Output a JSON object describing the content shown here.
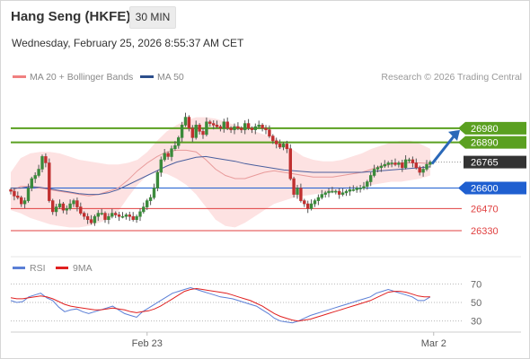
{
  "header": {
    "title": "Hang Seng (HKFE)",
    "timeframe": "30 MIN",
    "datetime": "Wednesday, February 25, 2026 8:55:37 AM CET",
    "copyright": "Research © 2026 Trading Central"
  },
  "legend": {
    "price": [
      {
        "label": "MA 20 + Bollinger Bands",
        "color": "#f08080"
      },
      {
        "label": "MA 50",
        "color": "#2c4f8c"
      }
    ],
    "rsi": [
      {
        "label": "RSI",
        "color": "#5b7fd6"
      },
      {
        "label": "9MA",
        "color": "#e02020"
      }
    ]
  },
  "levels": [
    {
      "label": "26980",
      "value": 26980,
      "kind": "resistance",
      "color": "#5aa020"
    },
    {
      "label": "26890",
      "value": 26890,
      "kind": "resistance",
      "color": "#5aa020"
    },
    {
      "label": "26765",
      "value": 26765,
      "kind": "last",
      "color": "#333333"
    },
    {
      "label": "26600",
      "value": 26600,
      "kind": "pivot",
      "color": "#1f5fd0"
    },
    {
      "label": "26470",
      "value": 26470,
      "kind": "support",
      "color": "#e04040"
    },
    {
      "label": "26330",
      "value": 26330,
      "kind": "support",
      "color": "#e04040"
    }
  ],
  "rsi_levels": [
    {
      "label": "70",
      "value": 70
    },
    {
      "label": "50",
      "value": 50
    },
    {
      "label": "30",
      "value": 30
    }
  ],
  "x_labels": [
    {
      "label": "Feb 23",
      "bar": 39
    },
    {
      "label": "Mar 2",
      "bar": 121
    }
  ],
  "colors": {
    "up": "#3a8a3a",
    "down": "#c03030",
    "band": "#fde2e2",
    "arrow": "#2a68b8"
  },
  "chart_data": [
    {
      "type": "candlestick",
      "title": "Hang Seng (HKFE)",
      "timeframe": "30 MIN",
      "ylim": [
        26250,
        27150
      ],
      "x_range": [
        0,
        128
      ],
      "series": [
        {
          "name": "MA 20 + Bollinger Bands",
          "type": "line"
        },
        {
          "name": "MA 50",
          "type": "line"
        }
      ],
      "close": [
        26580,
        26550,
        26540,
        26500,
        26520,
        26600,
        26660,
        26680,
        26720,
        26800,
        26760,
        26520,
        26450,
        26480,
        26500,
        26460,
        26470,
        26500,
        26520,
        26480,
        26440,
        26420,
        26400,
        26380,
        26420,
        26440,
        26440,
        26400,
        26420,
        26440,
        26430,
        26420,
        26420,
        26430,
        26420,
        26400,
        26420,
        26450,
        26480,
        26520,
        26540,
        26600,
        26700,
        26780,
        26820,
        26800,
        26850,
        26870,
        26920,
        27000,
        27050,
        26980,
        26920,
        27000,
        26960,
        26940,
        27020,
        27010,
        27000,
        26990,
        26980,
        27020,
        26980,
        26970,
        26990,
        26980,
        26970,
        27010,
        26980,
        26970,
        26990,
        27000,
        26980,
        26970,
        26930,
        26900,
        26880,
        26860,
        26880,
        26850,
        26660,
        26560,
        26600,
        26520,
        26500,
        26470,
        26500,
        26520,
        26540,
        26560,
        26570,
        26580,
        26580,
        26580,
        26560,
        26570,
        26580,
        26590,
        26590,
        26600,
        26600,
        26610,
        26640,
        26680,
        26720,
        26730,
        26740,
        26750,
        26760,
        26760,
        26750,
        26760,
        26730,
        26780,
        26780,
        26760,
        26730,
        26700,
        26720,
        26750,
        26765
      ],
      "bands": {
        "upper": [
          26700,
          26790,
          26820,
          26830,
          26830,
          26820,
          26800,
          26780,
          26770,
          26760,
          26750,
          26750,
          26760,
          26780,
          26830,
          26900,
          26960,
          27000,
          27030,
          27050,
          27050,
          27040,
          27020,
          27000,
          26980,
          26960,
          26940,
          26920,
          26880,
          26840,
          26800,
          26780,
          26770,
          26770,
          26780,
          26800,
          26820,
          26850,
          26870,
          26890,
          26900,
          26900,
          26880,
          26850
        ],
        "lower": [
          26460,
          26440,
          26410,
          26390,
          26370,
          26360,
          26350,
          26350,
          26360,
          26380,
          26400,
          26450,
          26540,
          26620,
          26680,
          26700,
          26690,
          26660,
          26620,
          26560,
          26480,
          26400,
          26360,
          26350,
          26380,
          26420,
          26460,
          26500,
          26520,
          26540,
          26550,
          26560,
          26570,
          26580,
          26590,
          26600,
          26610,
          26620,
          26630,
          26640,
          26640,
          26650,
          26660,
          26680
        ],
        "ma20": [
          26580,
          26610,
          26610,
          26600,
          26590,
          26580,
          26570,
          26560,
          26550,
          26560,
          26580,
          26600,
          26650,
          26710,
          26760,
          26800,
          26830,
          26840,
          26840,
          26830,
          26780,
          26720,
          26680,
          26660,
          26660,
          26680,
          26700,
          26710,
          26700,
          26690,
          26680,
          26670,
          26670,
          26670,
          26680,
          26690,
          26700,
          26720,
          26740,
          26750,
          26760,
          26760,
          26760,
          26755
        ]
      },
      "ma50": [
        26600,
        26600,
        26610,
        26605,
        26595,
        26585,
        26575,
        26565,
        26560,
        26560,
        26570,
        26590,
        26620,
        26650,
        26680,
        26710,
        26740,
        26765,
        26780,
        26795,
        26800,
        26790,
        26780,
        26770,
        26755,
        26745,
        26735,
        26725,
        26715,
        26710,
        26705,
        26700,
        26700,
        26700,
        26700,
        26700,
        26700,
        26705,
        26710,
        26715,
        26720,
        26725,
        26730,
        26735
      ]
    },
    {
      "type": "line",
      "title": "RSI",
      "ylim": [
        20,
        80
      ],
      "series": [
        {
          "name": "RSI",
          "values": [
            52,
            50,
            51,
            56,
            58,
            60,
            55,
            52,
            45,
            40,
            42,
            43,
            40,
            38,
            40,
            42,
            44,
            46,
            42,
            38,
            36,
            34,
            40,
            44,
            48,
            52,
            56,
            60,
            62,
            64,
            66,
            64,
            62,
            60,
            58,
            56,
            55,
            54,
            52,
            50,
            48,
            46,
            42,
            38,
            33,
            30,
            29,
            28,
            30,
            33,
            36,
            38,
            40,
            42,
            44,
            46,
            48,
            50,
            52,
            54,
            56,
            60,
            62,
            64,
            62,
            60,
            58,
            56,
            52,
            52,
            56
          ]
        },
        {
          "name": "9MA",
          "values": [
            55,
            54,
            54,
            55,
            56,
            57,
            56,
            54,
            51,
            48,
            46,
            45,
            44,
            43,
            42,
            42,
            43,
            44,
            43,
            42,
            40,
            39,
            40,
            41,
            43,
            46,
            50,
            54,
            58,
            62,
            64,
            65,
            64,
            63,
            62,
            61,
            60,
            58,
            56,
            54,
            52,
            49,
            46,
            42,
            38,
            35,
            33,
            31,
            30,
            31,
            32,
            34,
            36,
            38,
            40,
            42,
            44,
            46,
            48,
            50,
            52,
            55,
            58,
            61,
            62,
            62,
            61,
            59,
            57,
            56,
            56
          ]
        }
      ],
      "levels": [
        70,
        50,
        30
      ]
    }
  ]
}
